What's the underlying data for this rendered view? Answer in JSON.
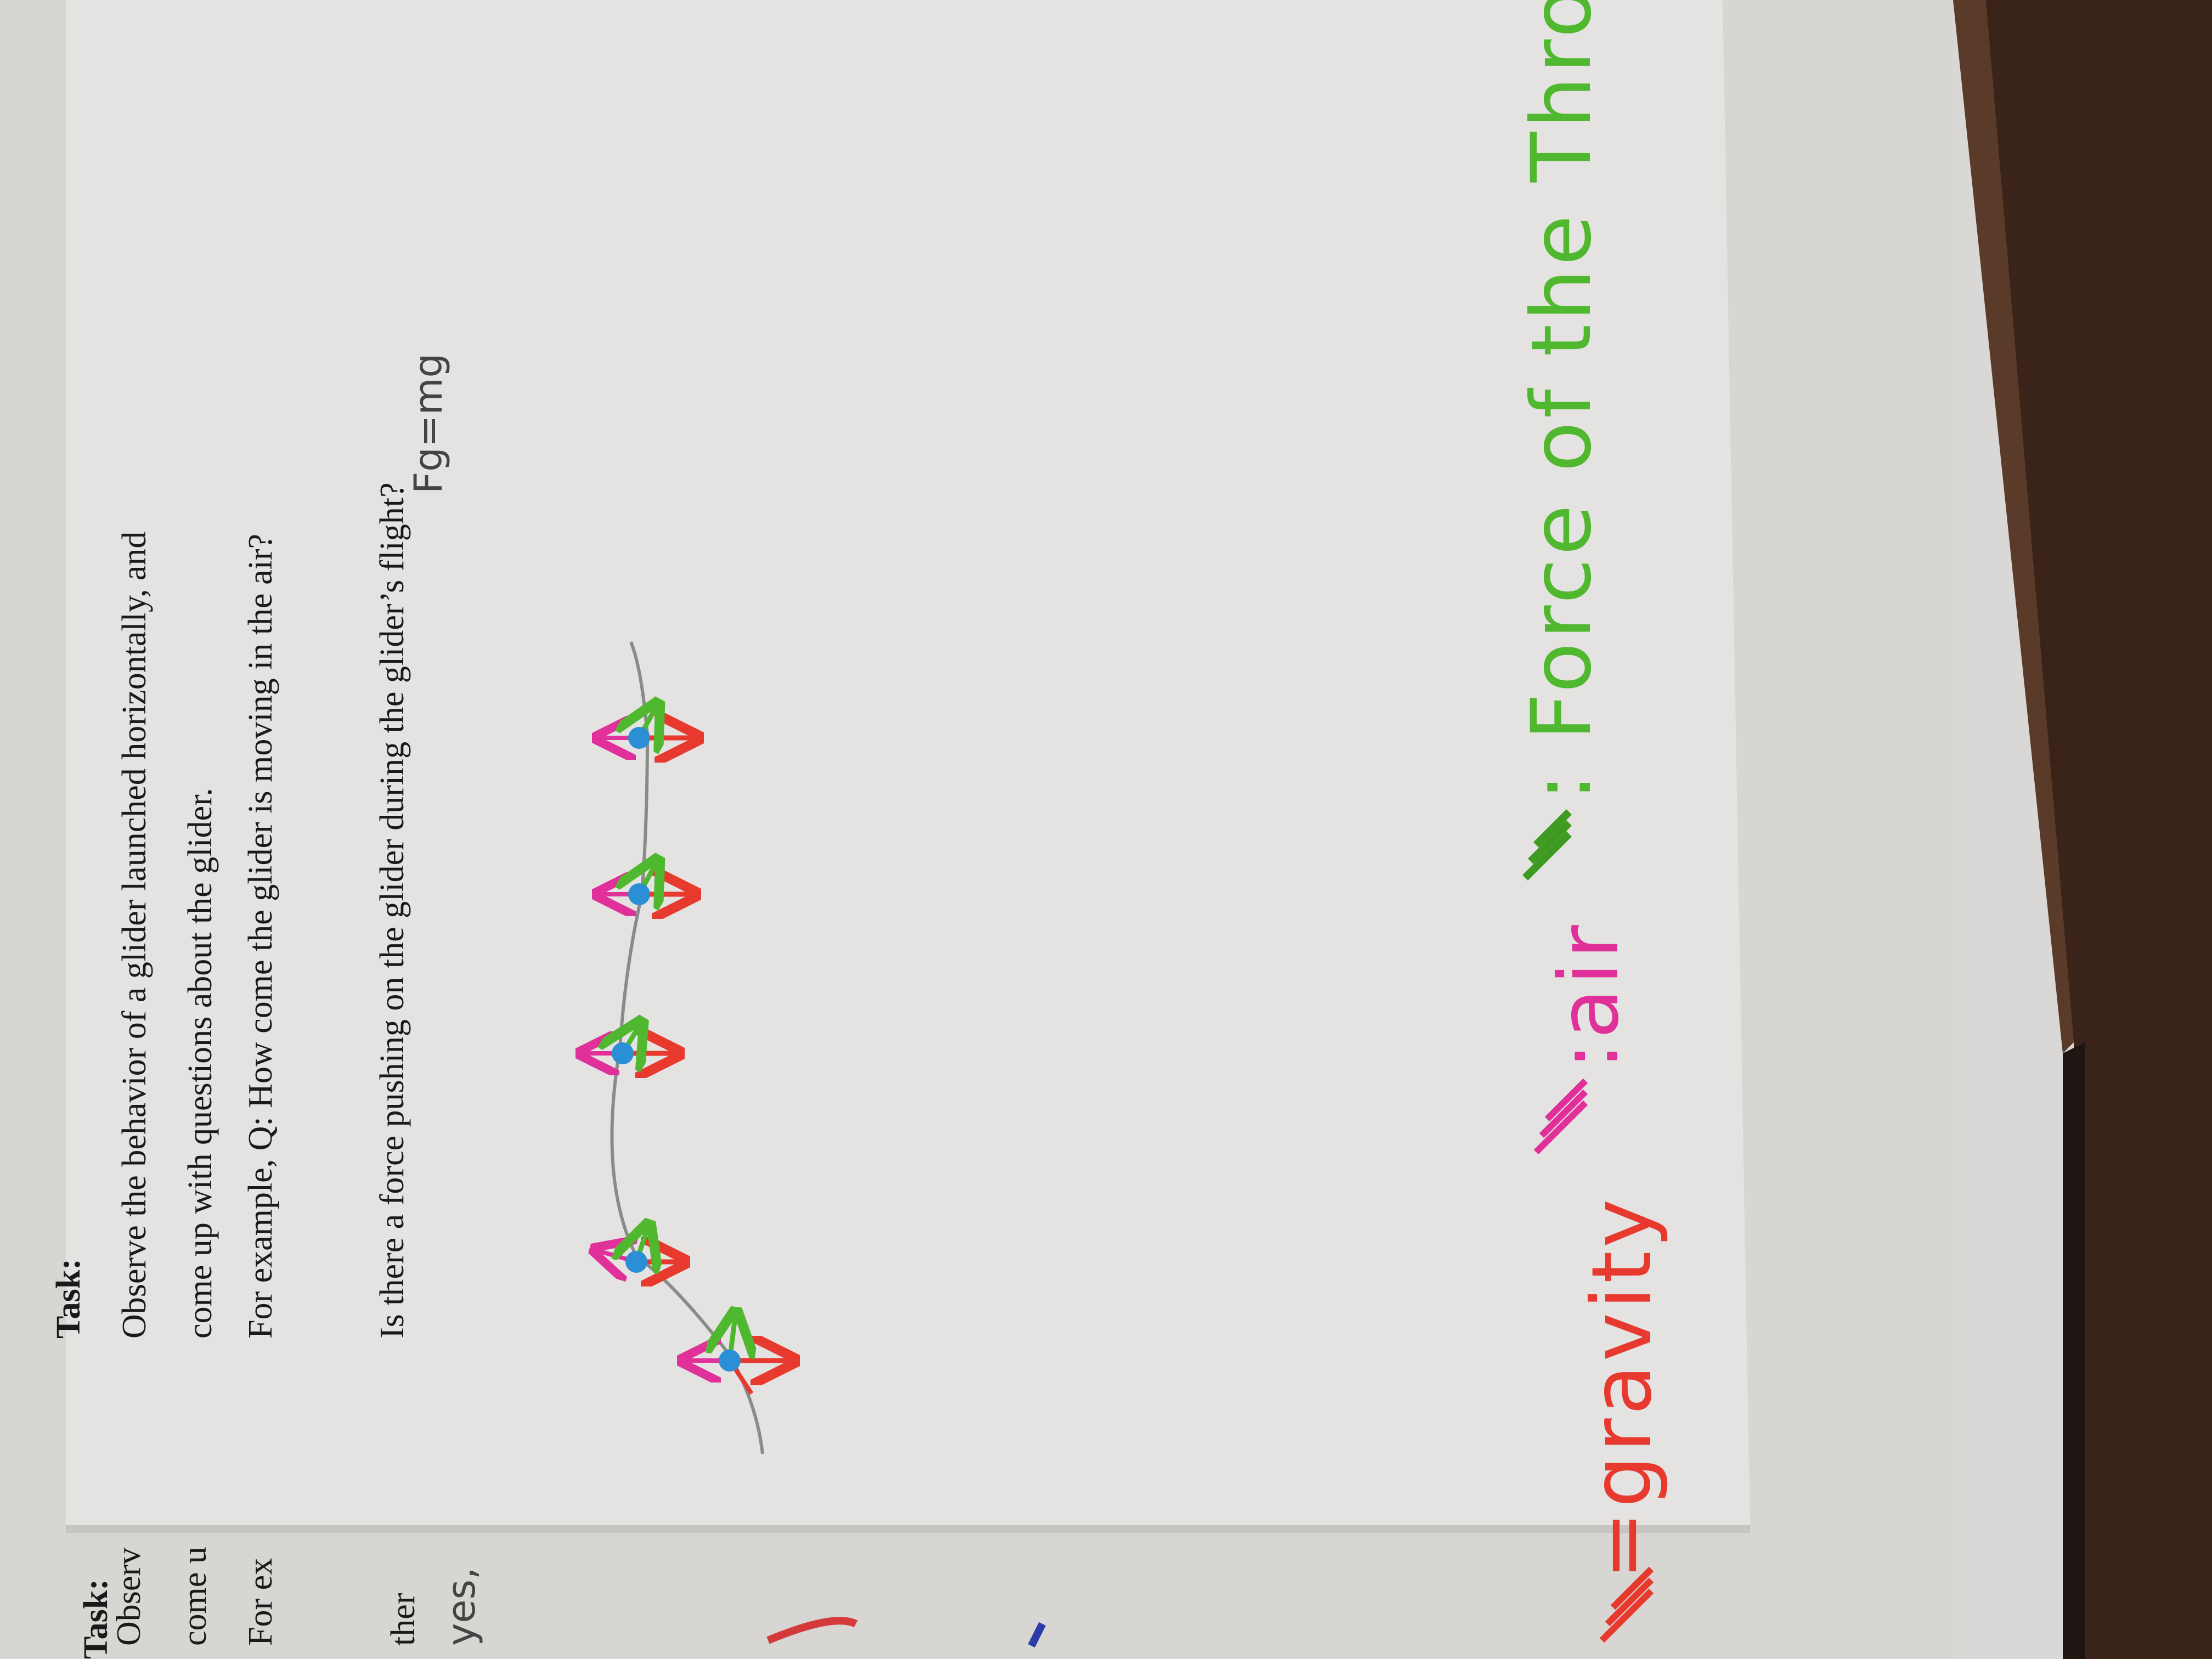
{
  "back_sheet": {
    "task_label": "Task:",
    "line1": "Observ",
    "line2": "come u",
    "line3": "For ex",
    "question": "ther",
    "answer": "yes,"
  },
  "front_sheet": {
    "task_label": "Task:",
    "line1": "Observe the behavior of a glider launched horizontally, and",
    "line2": "come up with questions about the glider.",
    "line3": "For example, Q: How come the glider is moving in the air?",
    "question": "Is there a force pushing on the glider during the glider’s flight?",
    "formula": "Fg=mg"
  },
  "legend": {
    "gravity_label": "=gravity",
    "air_label": ":air",
    "throw_label": ": Force of the Throw",
    "colors": {
      "gravity": "#e8392f",
      "air": "#e0309a",
      "throw": "#4fb82e",
      "glider": "#2b8fd6",
      "path": "#8a8a8a"
    }
  },
  "diagram": {
    "glider_points_count": 5
  }
}
